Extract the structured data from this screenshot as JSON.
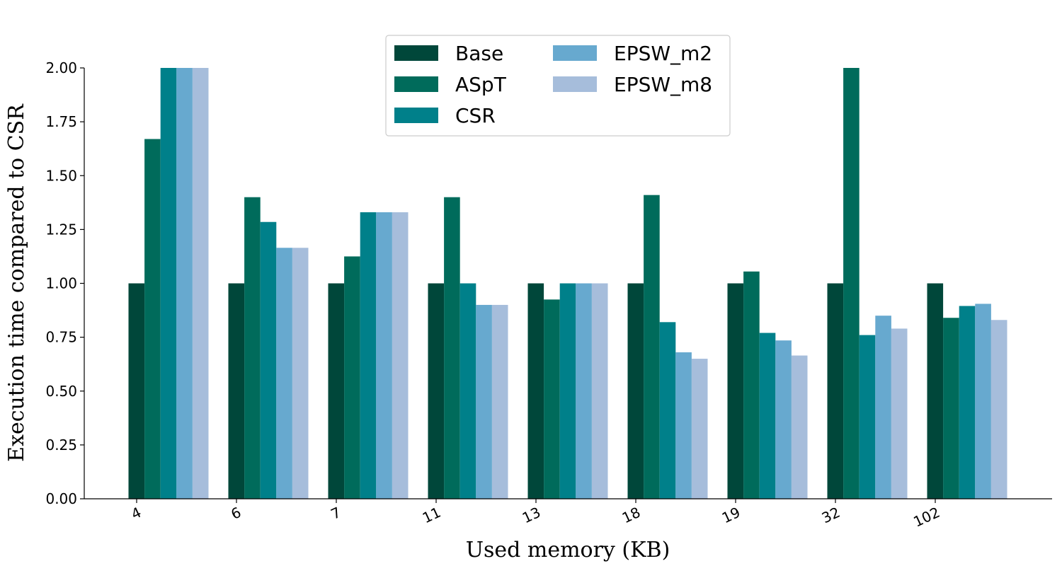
{
  "chart_data": {
    "type": "bar",
    "title": "",
    "xlabel": "Used memory (KB)",
    "ylabel": "Execution time compared to CSR",
    "categories": [
      "4",
      "6",
      "7",
      "11",
      "13",
      "18",
      "19",
      "32",
      "102"
    ],
    "ylim": [
      0,
      2.0
    ],
    "yticks": [
      "0.00",
      "0.25",
      "0.50",
      "0.75",
      "1.00",
      "1.25",
      "1.50",
      "1.75",
      "2.00"
    ],
    "grid": false,
    "legend_position": "top-center",
    "series": [
      {
        "name": "Base",
        "color": "#00473a",
        "values": [
          1.0,
          1.0,
          1.0,
          1.0,
          1.0,
          1.0,
          1.0,
          1.0,
          1.0
        ]
      },
      {
        "name": "ASpT",
        "color": "#006b5b",
        "values": [
          1.67,
          1.4,
          1.125,
          1.4,
          0.925,
          1.41,
          1.055,
          2.0,
          0.84
        ]
      },
      {
        "name": "CSR",
        "color": "#00808a",
        "values": [
          2.0,
          1.285,
          1.33,
          1.0,
          1.0,
          0.82,
          0.77,
          0.76,
          0.895
        ]
      },
      {
        "name": "EPSW_m2",
        "color": "#67a9cf",
        "values": [
          2.0,
          1.165,
          1.33,
          0.9,
          1.0,
          0.68,
          0.735,
          0.85,
          0.905
        ]
      },
      {
        "name": "EPSW_m8",
        "color": "#a6bddb",
        "values": [
          2.0,
          1.165,
          1.33,
          0.9,
          1.0,
          0.65,
          0.665,
          0.79,
          0.83
        ]
      }
    ]
  }
}
